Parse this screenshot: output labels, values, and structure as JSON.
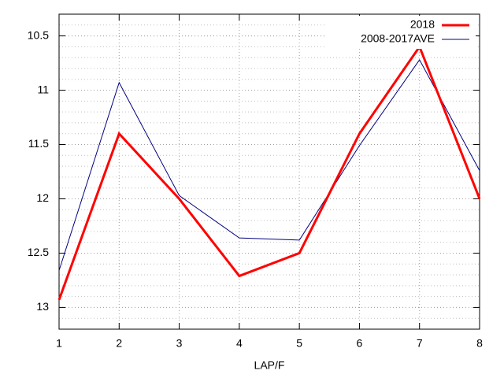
{
  "chart_data": {
    "type": "line",
    "x_label": "LAP/F",
    "x": [
      1,
      2,
      3,
      4,
      5,
      6,
      7,
      8
    ],
    "series": [
      {
        "name": "2018",
        "color": "#ff0000",
        "width": 3,
        "values": [
          12.93,
          11.4,
          12.0,
          12.71,
          12.5,
          11.4,
          10.6,
          12.0
        ]
      },
      {
        "name": "2008-2017AVE",
        "color": "#000080",
        "width": 1,
        "values": [
          12.66,
          10.93,
          11.97,
          12.36,
          12.38,
          11.51,
          10.72,
          11.74
        ]
      }
    ],
    "xlim": [
      1,
      8
    ],
    "xticks": [
      1,
      2,
      3,
      4,
      5,
      6,
      7,
      8
    ],
    "ylim": [
      10.3,
      13.2
    ],
    "yticks": [
      10.5,
      11,
      11.5,
      12,
      12.5,
      13
    ],
    "y_reversed": true,
    "grid": true,
    "legend": "top-right"
  }
}
